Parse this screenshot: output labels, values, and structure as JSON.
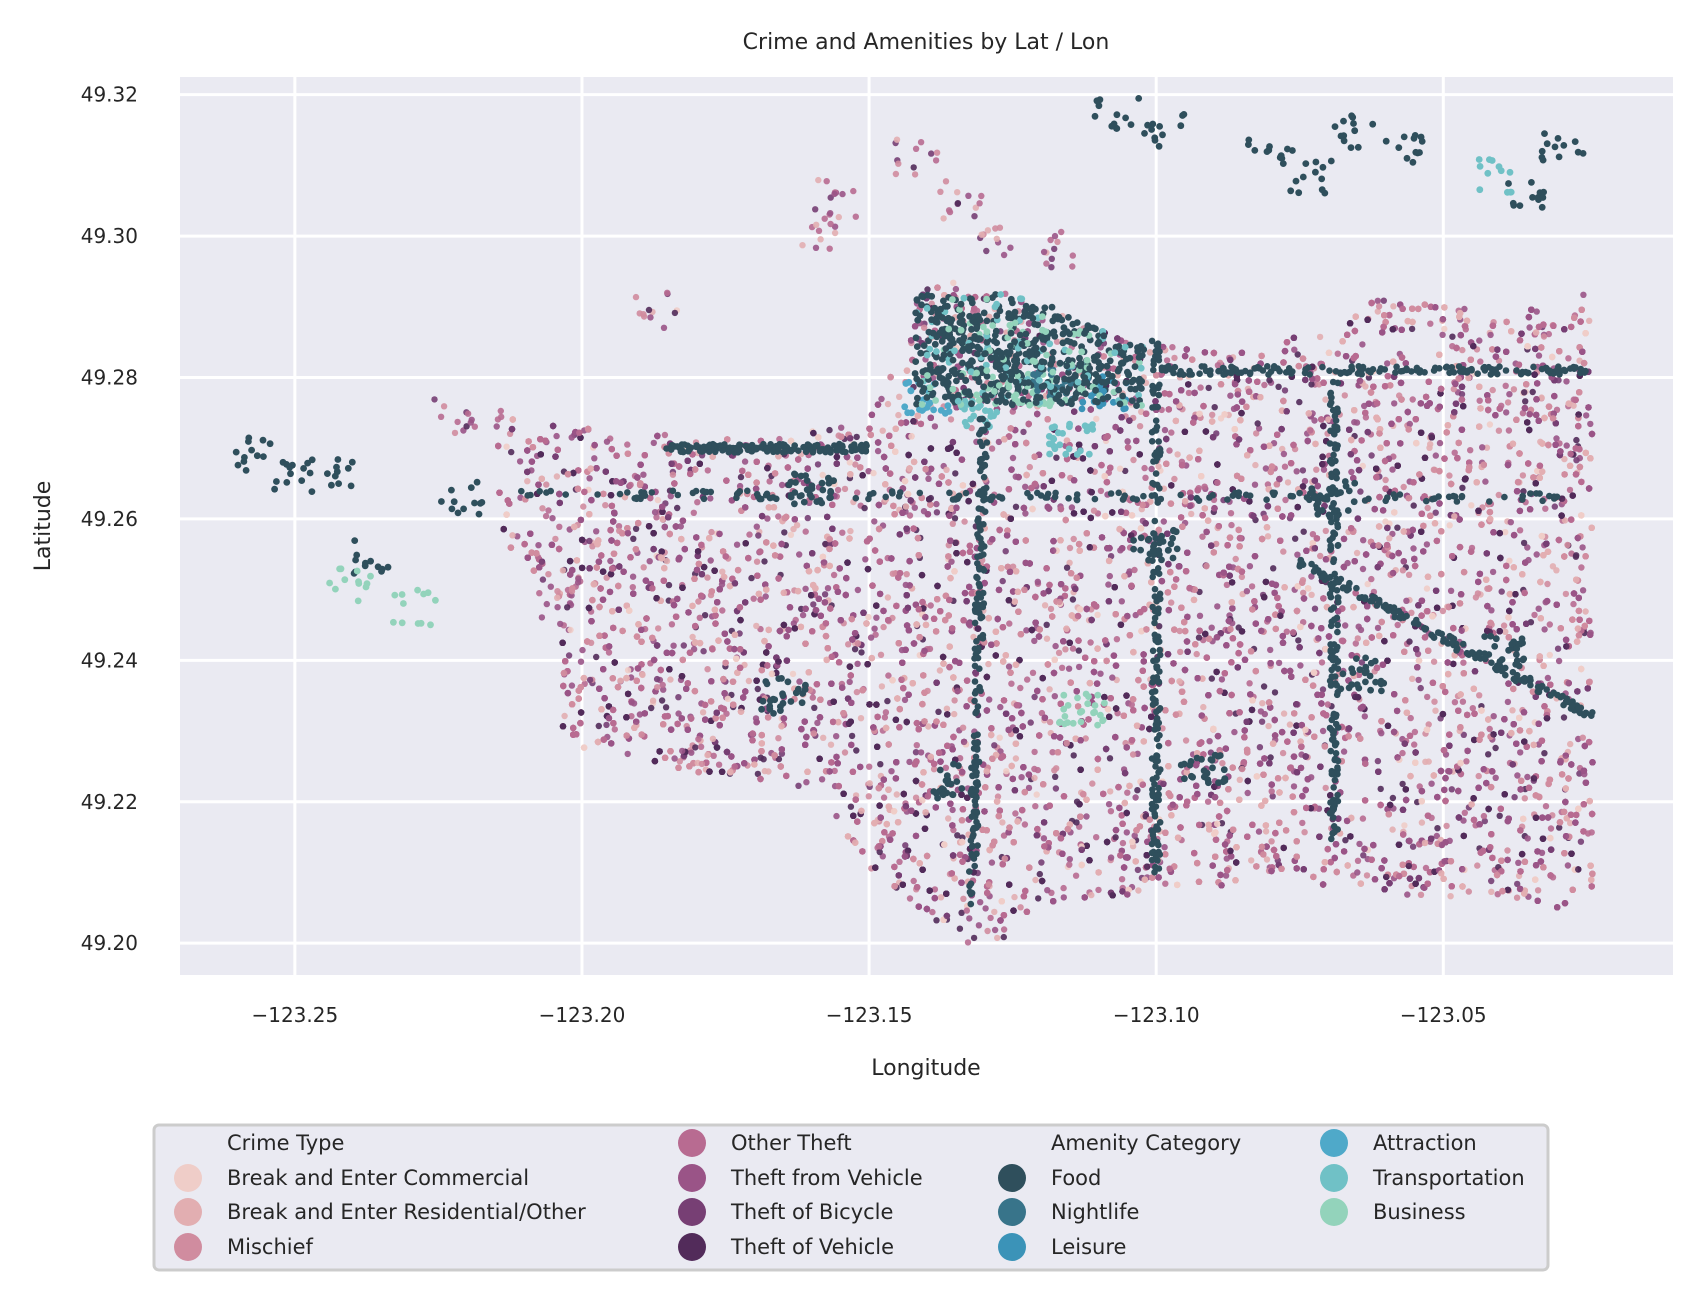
{
  "chart_data": {
    "type": "scatter",
    "title": "Crime and Amenities by Lat / Lon",
    "xlabel": "Longitude",
    "ylabel": "Latitude",
    "xlim": [
      -123.27,
      -123.01
    ],
    "ylim": [
      49.1955,
      49.3225
    ],
    "x_ticks": [
      -123.25,
      -123.2,
      -123.15,
      -123.1,
      -123.05
    ],
    "x_tick_labels": [
      "−123.25",
      "−123.20",
      "−123.15",
      "−123.10",
      "−123.05"
    ],
    "y_ticks": [
      49.2,
      49.22,
      49.24,
      49.26,
      49.28,
      49.3,
      49.32
    ],
    "y_tick_labels": [
      "49.20",
      "49.22",
      "49.24",
      "49.26",
      "49.28",
      "49.30",
      "49.32"
    ],
    "grid": true,
    "background": "#eaeaf2",
    "legend_position": "bottom-center, outside",
    "legend_groups": [
      {
        "title": "Crime Type",
        "items": [
          {
            "name": "Break and Enter Commercial",
            "color": "#efcdc8"
          },
          {
            "name": "Break and Enter Residential/Other",
            "color": "#e2aeb1"
          },
          {
            "name": "Mischief",
            "color": "#d08c9f"
          },
          {
            "name": "Other Theft",
            "color": "#b86b91"
          },
          {
            "name": "Theft from Vehicle",
            "color": "#9a5487"
          },
          {
            "name": "Theft of Bicycle",
            "color": "#773f74"
          },
          {
            "name": "Theft of Vehicle",
            "color": "#522b5a"
          }
        ]
      },
      {
        "title": "Amenity Category",
        "items": [
          {
            "name": "Food",
            "color": "#2f4f5c"
          },
          {
            "name": "Nightlife",
            "color": "#38748a"
          },
          {
            "name": "Leisure",
            "color": "#3b93b8"
          },
          {
            "name": "Attraction",
            "color": "#4fa9c9"
          },
          {
            "name": "Transportation",
            "color": "#70c1c6"
          },
          {
            "name": "Business",
            "color": "#93d3bb"
          }
        ]
      }
    ],
    "amenity_clusters": [
      {
        "category": "Food",
        "lon": -123.25,
        "lat": 49.266
      },
      {
        "category": "Food",
        "lon": -123.244,
        "lat": 49.2665
      },
      {
        "category": "Food",
        "lon": -123.258,
        "lat": 49.269
      },
      {
        "category": "Food",
        "lon": -123.237,
        "lat": 49.2545
      },
      {
        "category": "Food",
        "lon": -123.221,
        "lat": 49.263
      },
      {
        "category": "Business",
        "lon": -123.24,
        "lat": 49.2505
      },
      {
        "category": "Business",
        "lon": -123.229,
        "lat": 49.2475
      },
      {
        "category": "Food",
        "lon": -123.08,
        "lat": 49.312
      },
      {
        "category": "Food",
        "lon": -123.035,
        "lat": 49.3065
      },
      {
        "category": "Food",
        "lon": -123.065,
        "lat": 49.315
      },
      {
        "category": "Food",
        "lon": -123.099,
        "lat": 49.315
      },
      {
        "category": "Food",
        "lon": -123.107,
        "lat": 49.317
      },
      {
        "category": "Food",
        "lon": -123.057,
        "lat": 49.3125
      },
      {
        "category": "Food",
        "lon": -123.029,
        "lat": 49.3125
      },
      {
        "category": "Food",
        "lon": -123.073,
        "lat": 49.3085
      },
      {
        "category": "Food",
        "lon": -123.125,
        "lat": 49.282
      },
      {
        "category": "Food",
        "lon": -123.135,
        "lat": 49.287
      },
      {
        "category": "Food",
        "lon": -123.112,
        "lat": 49.28
      },
      {
        "category": "Food",
        "lon": -123.16,
        "lat": 49.264
      },
      {
        "category": "Food",
        "lon": -123.1,
        "lat": 49.256
      },
      {
        "category": "Food",
        "lon": -123.069,
        "lat": 49.263
      },
      {
        "category": "Food",
        "lon": -123.04,
        "lat": 49.241
      },
      {
        "category": "Food",
        "lon": -123.135,
        "lat": 49.223
      },
      {
        "category": "Food",
        "lon": -123.165,
        "lat": 49.235
      },
      {
        "category": "Food",
        "lon": -123.092,
        "lat": 49.225
      },
      {
        "category": "Food",
        "lon": -123.064,
        "lat": 49.238
      },
      {
        "category": "Transportation",
        "lon": -123.13,
        "lat": 49.275
      },
      {
        "category": "Transportation",
        "lon": -123.115,
        "lat": 49.271
      },
      {
        "category": "Transportation",
        "lon": -123.041,
        "lat": 49.3085
      },
      {
        "category": "Business",
        "lon": -123.122,
        "lat": 49.2785
      },
      {
        "category": "Business",
        "lon": -123.113,
        "lat": 49.233
      },
      {
        "category": "Leisure",
        "lon": -123.109,
        "lat": 49.278
      },
      {
        "category": "Attraction",
        "lon": -123.14,
        "lat": 49.277
      },
      {
        "category": "Nightlife",
        "lon": -123.118,
        "lat": 49.279
      }
    ]
  }
}
